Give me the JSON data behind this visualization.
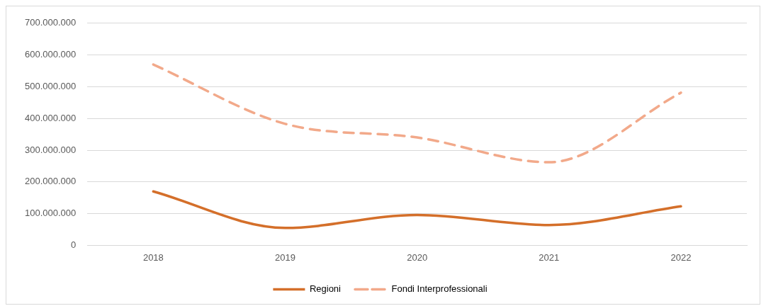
{
  "chart_data": {
    "type": "line",
    "categories": [
      "2018",
      "2019",
      "2020",
      "2021",
      "2022"
    ],
    "series": [
      {
        "name": "Regioni",
        "color": "#d46f2a",
        "values": [
          170000000,
          55000000,
          96000000,
          64000000,
          123000000
        ],
        "line_style": "solid"
      },
      {
        "name": "Fondi Interprofessionali",
        "color": "#f2a98a",
        "values": [
          570000000,
          383000000,
          340000000,
          262000000,
          481000000
        ],
        "line_style": "dashed"
      }
    ],
    "ylim": [
      0,
      700000000
    ],
    "yticks": [
      0,
      {
        "value": 100000000,
        "label": "100.000.000"
      },
      {
        "value": 200000000,
        "label": "200.000.000"
      },
      {
        "value": 300000000,
        "label": "300.000.000"
      },
      {
        "value": 400000000,
        "label": "400.000.000"
      },
      {
        "value": 500000000,
        "label": "500.000.000"
      },
      {
        "value": 600000000,
        "label": "600.000.000"
      },
      {
        "value": 700000000,
        "label": "700.000.000"
      }
    ],
    "grid": "y",
    "legend": "bottom",
    "marker": "none"
  }
}
